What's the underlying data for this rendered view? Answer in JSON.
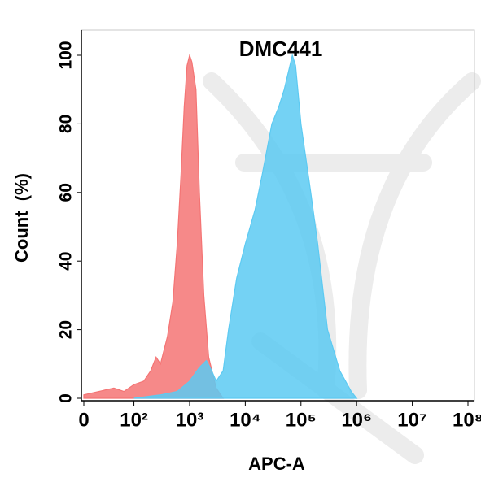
{
  "chart_data": {
    "type": "area",
    "title": "DMC441",
    "xlabel": "APC-A",
    "ylabel": "Count  (%)",
    "xscale": "biexponential",
    "xlim": [
      0,
      100000000
    ],
    "xticks": [
      0,
      {
        "value": 100,
        "label": "10²"
      },
      {
        "value": 1000,
        "label": "10³"
      },
      {
        "value": 10000,
        "label": "10⁴"
      },
      {
        "value": 100000,
        "label": "10⁵"
      },
      {
        "value": 1000000,
        "label": "10⁶"
      },
      {
        "value": 10000000,
        "label": "10⁷"
      },
      {
        "value": 100000000,
        "label": "10⁸"
      }
    ],
    "ylim": [
      0,
      107
    ],
    "yticks": [
      0,
      20,
      40,
      60,
      80,
      100
    ],
    "series": [
      {
        "color": "#f47474",
        "x": [
          0,
          30,
          60,
          80,
          100,
          150,
          200,
          250,
          300,
          400,
          500,
          600,
          700,
          800,
          900,
          1000,
          1100,
          1300,
          1500,
          1800,
          2200,
          3000,
          4000
        ],
        "values": [
          1,
          2,
          3,
          2,
          4,
          5,
          8,
          12,
          10,
          18,
          28,
          45,
          65,
          85,
          97,
          100,
          98,
          90,
          60,
          30,
          12,
          3,
          0
        ]
      },
      {
        "color": "#5ccaf2",
        "x": [
          100,
          300,
          600,
          1000,
          1500,
          2000,
          2500,
          3000,
          4000,
          5000,
          7000,
          10000,
          15000,
          20000,
          30000,
          40000,
          50000,
          70000,
          80000,
          100000,
          150000,
          200000,
          300000,
          500000,
          800000,
          1000000
        ],
        "values": [
          0,
          1,
          2,
          5,
          9,
          11,
          8,
          5,
          8,
          20,
          35,
          45,
          55,
          65,
          80,
          85,
          90,
          100,
          97,
          80,
          60,
          45,
          20,
          8,
          2,
          0
        ]
      }
    ]
  }
}
